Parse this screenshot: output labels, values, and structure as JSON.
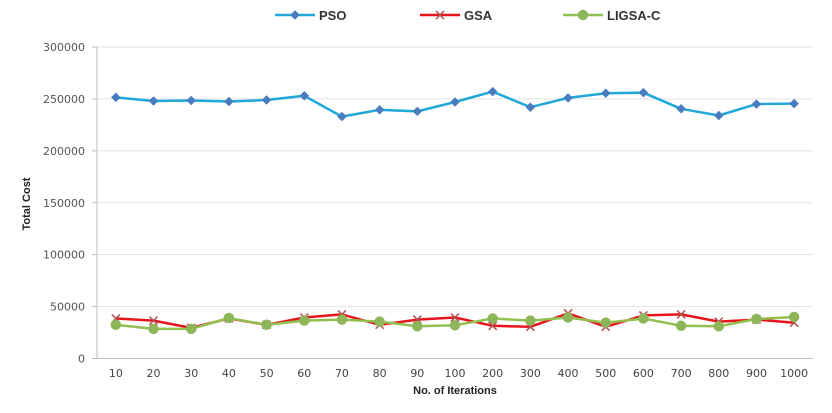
{
  "chart_data": {
    "type": "line",
    "title": "",
    "xlabel": "No. of Iterations",
    "ylabel": "Total Cost",
    "categories": [
      "10",
      "20",
      "30",
      "40",
      "50",
      "60",
      "70",
      "80",
      "90",
      "100",
      "200",
      "300",
      "400",
      "500",
      "600",
      "700",
      "800",
      "900",
      "1000"
    ],
    "ylim": [
      0,
      300000
    ],
    "yticks": [
      0,
      50000,
      100000,
      150000,
      200000,
      250000,
      300000
    ],
    "yticklabels": [
      "0",
      "50000",
      "100000",
      "150000",
      "200000",
      "250000",
      "300000"
    ],
    "grid": true,
    "legend_position": "top-center",
    "series": [
      {
        "name": "PSO",
        "color": "#1fa8d8",
        "marker": "diamond",
        "marker_color": "#4a7cc0",
        "values": [
          251500,
          248000,
          248500,
          247500,
          249000,
          253000,
          233000,
          239500,
          238000,
          247000,
          257000,
          242000,
          251000,
          255500,
          256000,
          240500,
          234000,
          245000,
          245500
        ]
      },
      {
        "name": "GSA",
        "color": "#e8141c",
        "marker": "x",
        "marker_color": "#b05050",
        "values": [
          38500,
          36500,
          29500,
          38500,
          32500,
          39500,
          42500,
          32500,
          37500,
          39500,
          31500,
          30500,
          43500,
          30500,
          41500,
          42500,
          35500,
          37500,
          34500
        ]
      },
      {
        "name": "LIGSA-C",
        "color": "#92c050",
        "marker": "circle",
        "marker_color": "#8db55a",
        "values": [
          32500,
          28500,
          28500,
          39000,
          32500,
          36500,
          37500,
          35500,
          31000,
          32000,
          38500,
          36500,
          39500,
          34500,
          38500,
          31500,
          31000,
          38000,
          40000
        ]
      }
    ]
  }
}
